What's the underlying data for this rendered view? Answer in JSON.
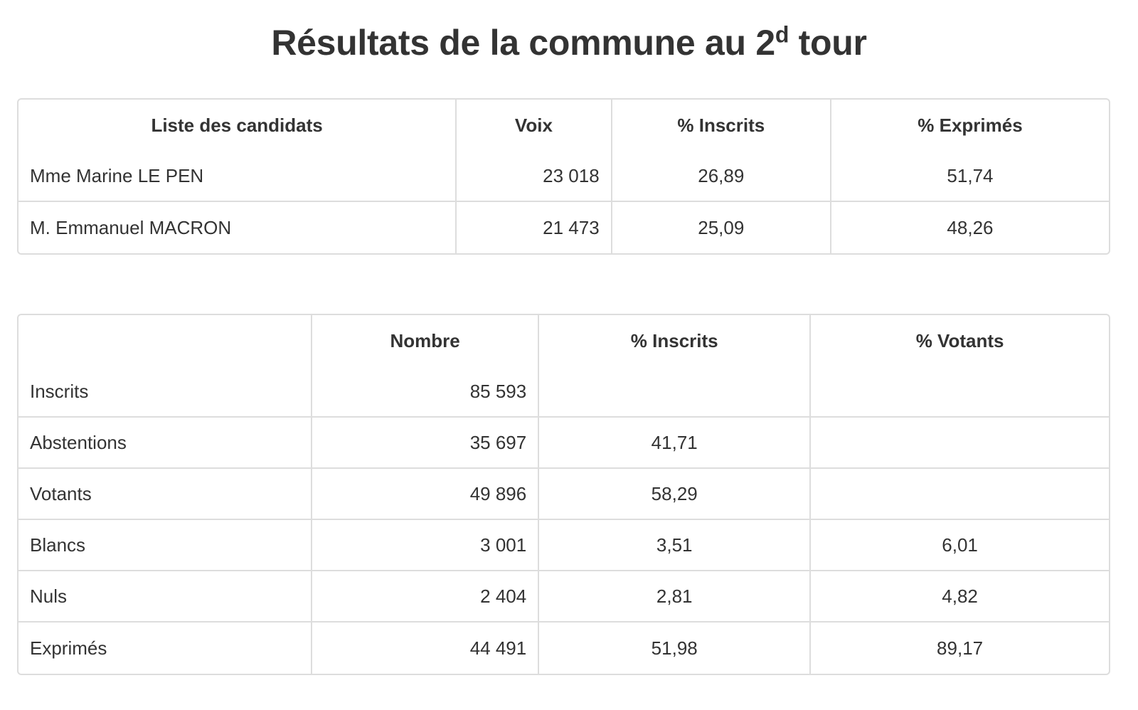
{
  "title": {
    "main": "Résultats de la commune au 2",
    "sup": "d",
    "tail": " tour"
  },
  "candidates_table": {
    "headers": [
      "Liste des candidats",
      "Voix",
      "% Inscrits",
      "% Exprimés"
    ],
    "rows": [
      {
        "name": "Mme Marine LE PEN",
        "voix": "23 018",
        "pct_inscrits": "26,89",
        "pct_exprimes": "51,74"
      },
      {
        "name": "M. Emmanuel MACRON",
        "voix": "21 473",
        "pct_inscrits": "25,09",
        "pct_exprimes": "48,26"
      }
    ]
  },
  "stats_table": {
    "headers": [
      "",
      "Nombre",
      "% Inscrits",
      "% Votants"
    ],
    "rows": [
      {
        "label": "Inscrits",
        "nombre": "85 593",
        "pct_inscrits": "",
        "pct_votants": ""
      },
      {
        "label": "Abstentions",
        "nombre": "35 697",
        "pct_inscrits": "41,71",
        "pct_votants": ""
      },
      {
        "label": "Votants",
        "nombre": "49 896",
        "pct_inscrits": "58,29",
        "pct_votants": ""
      },
      {
        "label": "Blancs",
        "nombre": "3 001",
        "pct_inscrits": "3,51",
        "pct_votants": "6,01"
      },
      {
        "label": "Nuls",
        "nombre": "2 404",
        "pct_inscrits": "2,81",
        "pct_votants": "4,82"
      },
      {
        "label": "Exprimés",
        "nombre": "44 491",
        "pct_inscrits": "51,98",
        "pct_votants": "89,17"
      }
    ]
  }
}
